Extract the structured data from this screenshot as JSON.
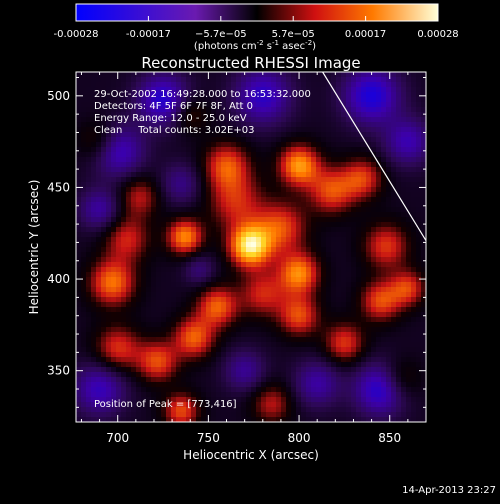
{
  "chart_data": {
    "type": "heatmap",
    "title": "Reconstructed RHESSI Image",
    "xlabel": "Heliocentric X (arcsec)",
    "ylabel": "Heliocentric Y (arcsec)",
    "xlim": [
      677,
      870
    ],
    "ylim": [
      322,
      513
    ],
    "xticks": [
      700,
      750,
      800,
      850
    ],
    "yticks": [
      350,
      400,
      450,
      500
    ],
    "colorbar": {
      "range": [
        -0.00028,
        0.00028
      ],
      "tick_labels": [
        "-0.00028",
        "-0.00017",
        "−5.7e−05",
        "5.7e−05",
        "0.00017",
        "0.00028"
      ],
      "units_text": "(photons cm",
      "units_exp1": "-2",
      "units_mid": " s",
      "units_exp2": "-1",
      "units_end": " asec",
      "units_exp3": "-2",
      "units_close": ")"
    },
    "annotations": [
      "29-Oct-2002 16:49:28.000 to 16:53:32.000",
      "Detectors: 4F 5F 6F 7F 8F, Att 0",
      "Energy Range: 12.0 - 25.0 keV",
      "Clean     Total counts: 3.02E+03"
    ],
    "peak_text": "Position of Peak = [773,416]",
    "peak": [
      773,
      416
    ],
    "limb_line": [
      [
        813,
        513
      ],
      [
        870,
        421
      ]
    ],
    "blobs": [
      {
        "x": 773,
        "y": 418,
        "v": 1.0,
        "s": 8
      },
      {
        "x": 790,
        "y": 428,
        "v": 0.55,
        "s": 10
      },
      {
        "x": 765,
        "y": 442,
        "v": 0.45,
        "s": 11
      },
      {
        "x": 737,
        "y": 423,
        "v": 0.7,
        "s": 7
      },
      {
        "x": 760,
        "y": 462,
        "v": 0.55,
        "s": 9
      },
      {
        "x": 800,
        "y": 462,
        "v": 0.75,
        "s": 8
      },
      {
        "x": 818,
        "y": 448,
        "v": 0.55,
        "s": 9
      },
      {
        "x": 835,
        "y": 455,
        "v": 0.5,
        "s": 8
      },
      {
        "x": 800,
        "y": 403,
        "v": 0.7,
        "s": 8
      },
      {
        "x": 800,
        "y": 380,
        "v": 0.55,
        "s": 8
      },
      {
        "x": 780,
        "y": 392,
        "v": 0.45,
        "s": 9
      },
      {
        "x": 755,
        "y": 385,
        "v": 0.6,
        "s": 8
      },
      {
        "x": 742,
        "y": 368,
        "v": 0.6,
        "s": 8
      },
      {
        "x": 722,
        "y": 355,
        "v": 0.55,
        "s": 8
      },
      {
        "x": 700,
        "y": 362,
        "v": 0.5,
        "s": 9
      },
      {
        "x": 697,
        "y": 398,
        "v": 0.65,
        "s": 9
      },
      {
        "x": 705,
        "y": 422,
        "v": 0.45,
        "s": 9
      },
      {
        "x": 712,
        "y": 445,
        "v": 0.4,
        "s": 8
      },
      {
        "x": 848,
        "y": 418,
        "v": 0.5,
        "s": 9
      },
      {
        "x": 845,
        "y": 388,
        "v": 0.55,
        "s": 8
      },
      {
        "x": 860,
        "y": 395,
        "v": 0.5,
        "s": 7
      },
      {
        "x": 825,
        "y": 365,
        "v": 0.5,
        "s": 8
      },
      {
        "x": 855,
        "y": 345,
        "v": 0.35,
        "s": 8
      },
      {
        "x": 735,
        "y": 328,
        "v": 0.55,
        "s": 7
      },
      {
        "x": 785,
        "y": 332,
        "v": 0.4,
        "s": 8
      },
      {
        "x": 690,
        "y": 475,
        "v": 0.35,
        "s": 8
      },
      {
        "x": 740,
        "y": 490,
        "v": 0.3,
        "s": 7
      },
      {
        "x": 845,
        "y": 340,
        "v": -0.7,
        "s": 10
      },
      {
        "x": 700,
        "y": 470,
        "v": -0.6,
        "s": 10
      },
      {
        "x": 725,
        "y": 498,
        "v": -0.65,
        "s": 10
      },
      {
        "x": 780,
        "y": 500,
        "v": -0.6,
        "s": 11
      },
      {
        "x": 840,
        "y": 500,
        "v": -0.7,
        "s": 11
      },
      {
        "x": 690,
        "y": 340,
        "v": -0.55,
        "s": 10
      },
      {
        "x": 690,
        "y": 438,
        "v": -0.45,
        "s": 8
      },
      {
        "x": 735,
        "y": 452,
        "v": -0.35,
        "s": 8
      },
      {
        "x": 745,
        "y": 405,
        "v": -0.3,
        "s": 6
      },
      {
        "x": 810,
        "y": 343,
        "v": -0.45,
        "s": 9
      },
      {
        "x": 860,
        "y": 475,
        "v": -0.5,
        "s": 9
      },
      {
        "x": 770,
        "y": 350,
        "v": -0.4,
        "s": 8
      }
    ]
  },
  "timestamp": "14-Apr-2013 23:27"
}
